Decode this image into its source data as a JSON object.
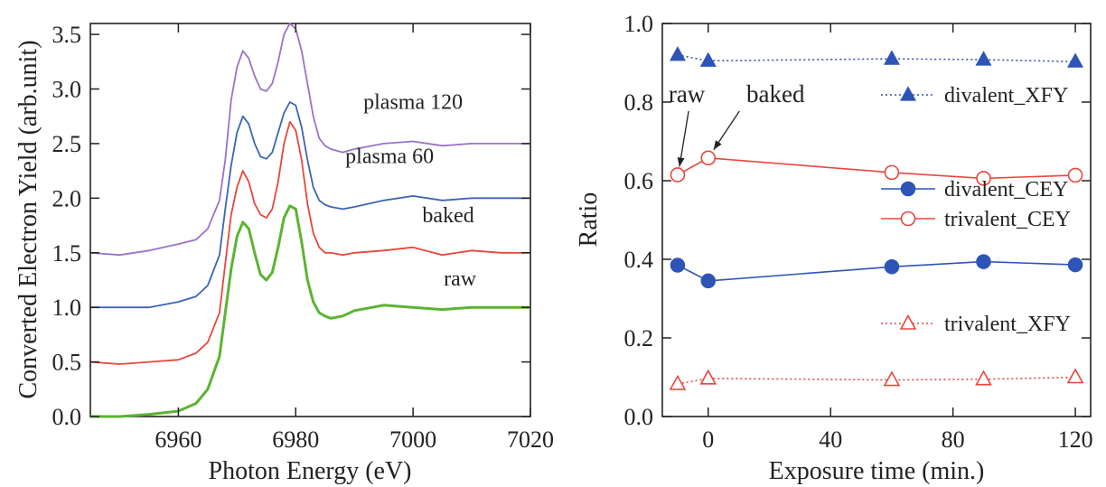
{
  "colors": {
    "plasma120": "#9b72c8",
    "plasma60": "#3c64b4",
    "baked": "#e8463c",
    "raw": "#5ab432",
    "blue": "#2e54b8",
    "red": "#e8463c",
    "axis": "#222222"
  },
  "chart_data": [
    {
      "type": "line",
      "xlabel": "Photon Energy (eV)",
      "ylabel": "Converted Electron Yield (arb.unit)",
      "xlim": [
        6945,
        7020
      ],
      "ylim": [
        0.0,
        3.6
      ],
      "xticks": [
        6960,
        6980,
        7000,
        7020
      ],
      "xtick_labels": [
        "6960",
        "6980",
        "7000",
        "7020"
      ],
      "yticks": [
        0.0,
        0.5,
        1.0,
        1.5,
        2.0,
        2.5,
        3.0,
        3.5
      ],
      "ytick_labels": [
        "0.0",
        "0.5",
        "1.0",
        "1.5",
        "2.0",
        "2.5",
        "3.0",
        "3.5"
      ],
      "grid": false,
      "series": [
        {
          "name": "plasma 120",
          "color_key": "plasma120",
          "x": [
            6945,
            6950,
            6955,
            6960,
            6963,
            6965,
            6967,
            6968,
            6969,
            6970,
            6971,
            6972,
            6973,
            6974,
            6975,
            6976,
            6977,
            6978,
            6979,
            6980,
            6981,
            6982,
            6983,
            6984,
            6985,
            6986,
            6988,
            6990,
            6995,
            7000,
            7005,
            7010,
            7015,
            7020
          ],
          "y": [
            1.5,
            1.48,
            1.52,
            1.58,
            1.62,
            1.72,
            1.98,
            2.35,
            2.9,
            3.2,
            3.35,
            3.28,
            3.12,
            3.0,
            2.98,
            3.05,
            3.25,
            3.5,
            3.6,
            3.55,
            3.35,
            3.05,
            2.75,
            2.55,
            2.48,
            2.45,
            2.42,
            2.45,
            2.5,
            2.52,
            2.48,
            2.5,
            2.5,
            2.5
          ]
        },
        {
          "name": "plasma 60",
          "color_key": "plasma60",
          "x": [
            6945,
            6950,
            6955,
            6960,
            6963,
            6965,
            6967,
            6968,
            6969,
            6970,
            6971,
            6972,
            6973,
            6974,
            6975,
            6976,
            6977,
            6978,
            6979,
            6980,
            6981,
            6982,
            6983,
            6984,
            6985,
            6986,
            6988,
            6990,
            6995,
            7000,
            7005,
            7010,
            7015,
            7020
          ],
          "y": [
            1.0,
            1.0,
            1.0,
            1.05,
            1.1,
            1.2,
            1.48,
            1.9,
            2.3,
            2.6,
            2.75,
            2.68,
            2.5,
            2.38,
            2.36,
            2.42,
            2.6,
            2.78,
            2.88,
            2.85,
            2.65,
            2.35,
            2.1,
            1.98,
            1.94,
            1.92,
            1.9,
            1.92,
            1.98,
            2.02,
            1.98,
            2.0,
            2.0,
            2.0
          ]
        },
        {
          "name": "baked",
          "color_key": "baked",
          "x": [
            6945,
            6950,
            6955,
            6960,
            6963,
            6965,
            6967,
            6968,
            6969,
            6970,
            6971,
            6972,
            6973,
            6974,
            6975,
            6976,
            6977,
            6978,
            6979,
            6980,
            6981,
            6982,
            6983,
            6984,
            6985,
            6986,
            6988,
            6990,
            6995,
            7000,
            7005,
            7010,
            7015,
            7020
          ],
          "y": [
            0.5,
            0.48,
            0.5,
            0.52,
            0.58,
            0.68,
            0.95,
            1.4,
            1.85,
            2.1,
            2.25,
            2.15,
            1.95,
            1.85,
            1.82,
            1.9,
            2.15,
            2.5,
            2.7,
            2.62,
            2.35,
            1.95,
            1.68,
            1.55,
            1.5,
            1.5,
            1.48,
            1.5,
            1.52,
            1.55,
            1.48,
            1.52,
            1.5,
            1.5
          ]
        },
        {
          "name": "raw",
          "color_key": "raw",
          "x": [
            6945,
            6950,
            6955,
            6960,
            6963,
            6965,
            6967,
            6968,
            6969,
            6970,
            6971,
            6972,
            6973,
            6974,
            6975,
            6976,
            6977,
            6978,
            6979,
            6980,
            6981,
            6982,
            6983,
            6984,
            6985,
            6986,
            6988,
            6990,
            6995,
            7000,
            7005,
            7010,
            7015,
            7020
          ],
          "y": [
            0.0,
            0.0,
            0.02,
            0.05,
            0.12,
            0.25,
            0.55,
            0.95,
            1.35,
            1.65,
            1.78,
            1.72,
            1.5,
            1.3,
            1.25,
            1.32,
            1.55,
            1.82,
            1.93,
            1.9,
            1.6,
            1.25,
            1.05,
            0.95,
            0.92,
            0.9,
            0.92,
            0.97,
            1.02,
            1.0,
            0.98,
            1.0,
            1.0,
            1.0
          ]
        }
      ],
      "labels": [
        {
          "text": "plasma 120",
          "x": 7000,
          "y": 2.82
        },
        {
          "text": "plasma 60",
          "x": 6996,
          "y": 2.32
        },
        {
          "text": "baked",
          "x": 7006,
          "y": 1.78
        },
        {
          "text": "raw",
          "x": 7008,
          "y": 1.2
        }
      ]
    },
    {
      "type": "line",
      "xlabel": "Exposure time (min.)",
      "ylabel": "Ratio",
      "xlim": [
        -15,
        125
      ],
      "ylim": [
        0.0,
        1.0
      ],
      "xticks": [
        0,
        40,
        80,
        120
      ],
      "xtick_labels": [
        "0",
        "40",
        "80",
        "120"
      ],
      "yticks": [
        0.0,
        0.2,
        0.4,
        0.6,
        0.8,
        1.0
      ],
      "ytick_labels": [
        "0.0",
        "0.2",
        "0.4",
        "0.6",
        "0.8",
        "1.0"
      ],
      "grid": false,
      "series": [
        {
          "name": "divalent_XFY",
          "color_key": "blue",
          "marker": "triangle-filled",
          "line": "dotted",
          "x": [
            -10,
            0,
            60,
            90,
            120
          ],
          "y": [
            0.92,
            0.905,
            0.91,
            0.908,
            0.903
          ]
        },
        {
          "name": "divalent_CEY",
          "color_key": "blue",
          "marker": "circle-filled",
          "line": "solid",
          "x": [
            -10,
            0,
            60,
            90,
            120
          ],
          "y": [
            0.385,
            0.345,
            0.381,
            0.394,
            0.386
          ]
        },
        {
          "name": "trivalent_CEY",
          "color_key": "red",
          "marker": "circle-open",
          "line": "solid",
          "x": [
            -10,
            0,
            60,
            90,
            120
          ],
          "y": [
            0.615,
            0.658,
            0.621,
            0.606,
            0.614
          ]
        },
        {
          "name": "trivalent_XFY",
          "color_key": "red",
          "marker": "triangle-open",
          "line": "dotted",
          "x": [
            -10,
            0,
            60,
            90,
            120
          ],
          "y": [
            0.083,
            0.097,
            0.093,
            0.095,
            0.1
          ]
        }
      ],
      "legend": [
        {
          "series_index": 0,
          "text": "divalent_XFY",
          "position": "top-right"
        },
        {
          "series_index": 1,
          "text": "divalent_CEY",
          "position": "center-right"
        },
        {
          "series_index": 2,
          "text": "trivalent_CEY",
          "position": "center-right"
        },
        {
          "series_index": 3,
          "text": "trivalent_XFY",
          "position": "bottom-right"
        }
      ],
      "annotations": [
        {
          "text": "raw",
          "point": [
            -10,
            0.615
          ],
          "text_at": [
            -7,
            0.8
          ]
        },
        {
          "text": "baked",
          "point": [
            0,
            0.658
          ],
          "text_at": [
            22,
            0.8
          ]
        }
      ]
    }
  ]
}
